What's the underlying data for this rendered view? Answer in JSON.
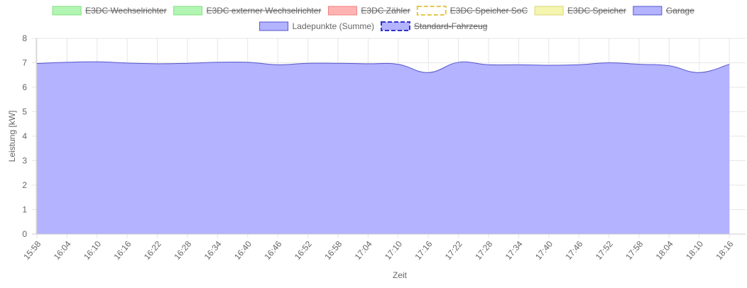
{
  "chart_data": {
    "type": "area",
    "xlabel": "Zeit",
    "ylabel": "Leistung [kW]",
    "ylim": [
      0,
      8
    ],
    "yticks": [
      "0",
      "1",
      "2",
      "3",
      "4",
      "5",
      "6",
      "7",
      "8"
    ],
    "xticks": [
      "15:58",
      "16:04",
      "16:10",
      "16:16",
      "16:22",
      "16:28",
      "16:34",
      "16:40",
      "16:46",
      "16:52",
      "16:58",
      "17:04",
      "17:10",
      "17:16",
      "17:22",
      "17:28",
      "17:34",
      "17:40",
      "17:46",
      "17:52",
      "17:58",
      "18:04",
      "18:10",
      "18:16"
    ],
    "legend_position": "top",
    "grid": true,
    "legend": [
      {
        "label": "E3DC Wechselrichter",
        "fill": "#b3f5b3",
        "stroke": "#7fe07f",
        "dashed": false,
        "hidden": true
      },
      {
        "label": "E3DC externer Wechselrichter",
        "fill": "#b3f5b3",
        "stroke": "#7fe07f",
        "dashed": false,
        "hidden": true
      },
      {
        "label": "E3DC Zähler",
        "fill": "#ffb3b3",
        "stroke": "#f08080",
        "dashed": false,
        "hidden": true
      },
      {
        "label": "E3DC Speicher SoC",
        "fill": "#ffffff",
        "stroke": "#e6c84a",
        "dashed": true,
        "hidden": true
      },
      {
        "label": "E3DC Speicher",
        "fill": "#f5f5b0",
        "stroke": "#d8d870",
        "dashed": false,
        "hidden": true
      },
      {
        "label": "Garage",
        "fill": "#b3b3ff",
        "stroke": "#5555cc",
        "dashed": false,
        "hidden": true
      },
      {
        "label": "Ladepunkte (Summe)",
        "fill": "#b3b3ff",
        "stroke": "#5555cc",
        "dashed": false,
        "hidden": false
      },
      {
        "label": "Standard-Fahrzeug",
        "fill": "#b3b3ff",
        "stroke": "#3333cc",
        "dashed": true,
        "hidden": true
      }
    ],
    "series": [
      {
        "name": "Ladepunkte (Summe)",
        "fill": "#b3b3ff",
        "stroke": "#5555cc",
        "x": [
          "15:58",
          "16:04",
          "16:10",
          "16:16",
          "16:22",
          "16:28",
          "16:34",
          "16:40",
          "16:46",
          "16:52",
          "16:58",
          "17:04",
          "17:10",
          "17:16",
          "17:22",
          "17:28",
          "17:34",
          "17:40",
          "17:46",
          "17:52",
          "17:58",
          "18:04",
          "18:10",
          "18:16"
        ],
        "values": [
          6.97,
          7.02,
          7.04,
          6.99,
          6.96,
          6.98,
          7.02,
          7.02,
          6.92,
          6.98,
          6.98,
          6.96,
          6.94,
          6.6,
          7.02,
          6.92,
          6.92,
          6.9,
          6.92,
          7.0,
          6.94,
          6.88,
          6.6,
          6.94
        ]
      }
    ]
  }
}
